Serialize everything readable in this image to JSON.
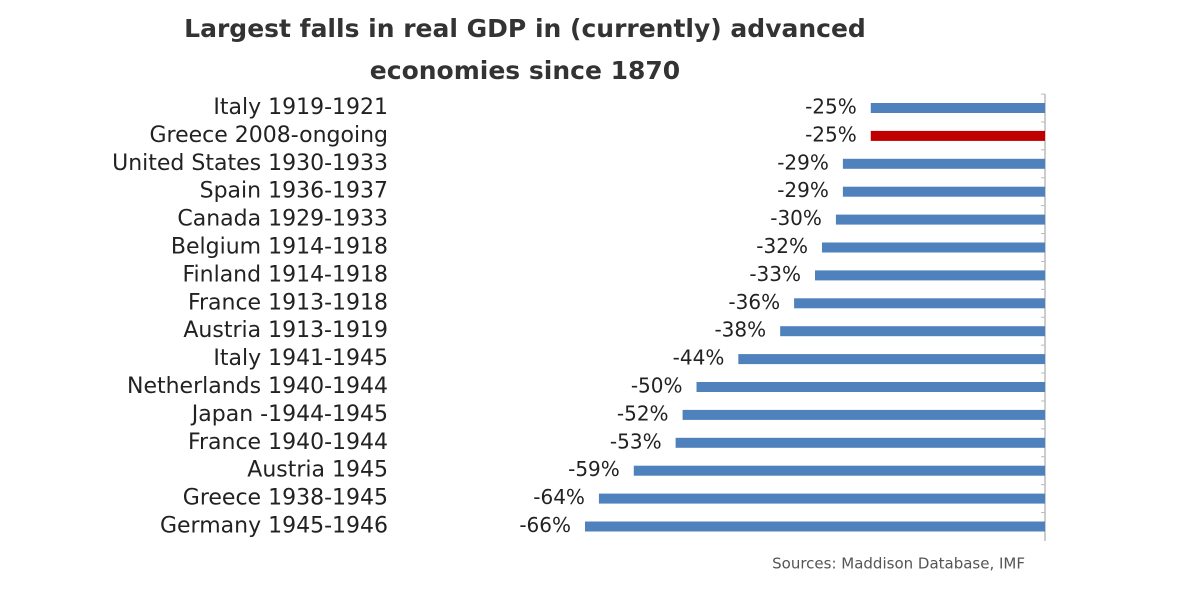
{
  "chart_data": {
    "type": "hbar",
    "title": [
      "Largest falls in real GDP in (currently) advanced",
      "economies since 1870"
    ],
    "categories": [
      "Italy 1919-1921",
      "Greece 2008-ongoing",
      "United States 1930-1933",
      "Spain 1936-1937",
      "Canada 1929-1933",
      "Belgium 1914-1918",
      "Finland 1914-1918",
      "France 1913-1918",
      "Austria 1913-1919",
      "Italy 1941-1945",
      "Netherlands 1940-1944",
      "Japan -1944-1945",
      "France 1940-1944",
      "Austria 1945",
      "Greece 1938-1945",
      "Germany 1945-1946"
    ],
    "values": [
      -25,
      -25,
      -29,
      -29,
      -30,
      -32,
      -33,
      -36,
      -38,
      -44,
      -50,
      -52,
      -53,
      -59,
      -64,
      -66
    ],
    "value_labels": [
      "-25%",
      "-25%",
      "-29%",
      "-29%",
      "-30%",
      "-32%",
      "-33%",
      "-36%",
      "-38%",
      "-44%",
      "-50%",
      "-52%",
      "-53%",
      "-59%",
      "-64%",
      "-66%"
    ],
    "colors": [
      "#4f81bd",
      "#c00000",
      "#4f81bd",
      "#4f81bd",
      "#4f81bd",
      "#4f81bd",
      "#4f81bd",
      "#4f81bd",
      "#4f81bd",
      "#4f81bd",
      "#4f81bd",
      "#4f81bd",
      "#4f81bd",
      "#4f81bd",
      "#4f81bd",
      "#4f81bd"
    ],
    "source": "Sources: Maddison Database, IMF"
  }
}
